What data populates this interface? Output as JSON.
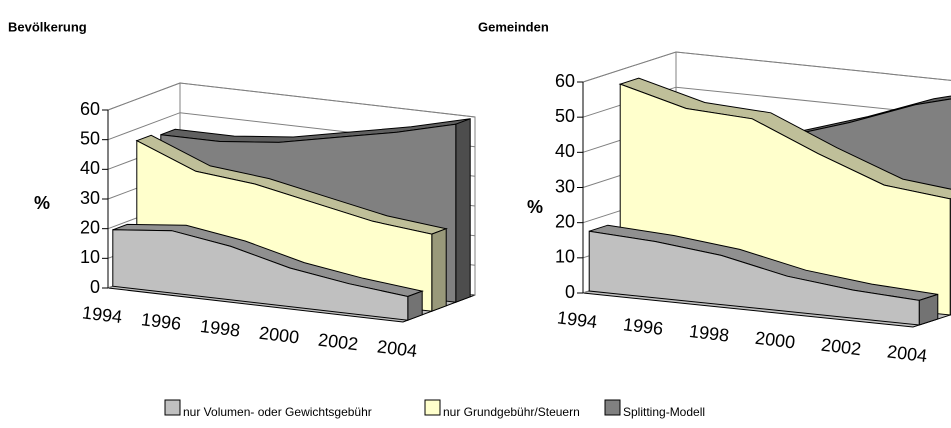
{
  "chart_data": [
    {
      "type": "area3d",
      "title": "Bevölkerung",
      "ylabel": "%",
      "categories": [
        "1994",
        "1996",
        "1998",
        "2000",
        "2002",
        "2004"
      ],
      "ylim": [
        0,
        60
      ],
      "yticks": [
        0,
        10,
        20,
        30,
        40,
        50,
        60
      ],
      "grid": true,
      "series": [
        {
          "name": "nur Volumen- oder Gewichtsgebühr",
          "color": "#c0c0c0",
          "values": [
            19,
            21,
            18,
            13,
            10,
            8
          ]
        },
        {
          "name": "nur Grundgebühr/Steuern",
          "color": "#ffffcc",
          "values": [
            46,
            38,
            36,
            32,
            28,
            26
          ]
        },
        {
          "name": "Splitting-Modell",
          "color": "#808080",
          "values": [
            45,
            45,
            47,
            51,
            55,
            60
          ]
        }
      ]
    },
    {
      "type": "area3d",
      "title": "Gemeinden",
      "ylabel": "%",
      "categories": [
        "1994",
        "1996",
        "1998",
        "2000",
        "2002",
        "2004"
      ],
      "ylim": [
        0,
        60
      ],
      "yticks": [
        0,
        10,
        20,
        30,
        40,
        50,
        60
      ],
      "grid": true,
      "series": [
        {
          "name": "nur Volumen- oder Gewichtsgebühr",
          "color": "#c0c0c0",
          "values": [
            17,
            16,
            14,
            10,
            8,
            7
          ]
        },
        {
          "name": "nur Grundgebühr/Steuern",
          "color": "#ffffcc",
          "values": [
            56,
            51,
            50,
            42,
            35,
            33
          ]
        },
        {
          "name": "Splitting-Modell",
          "color": "#808080",
          "values": [
            38,
            40,
            42,
            48,
            55,
            60
          ]
        }
      ]
    }
  ]
}
